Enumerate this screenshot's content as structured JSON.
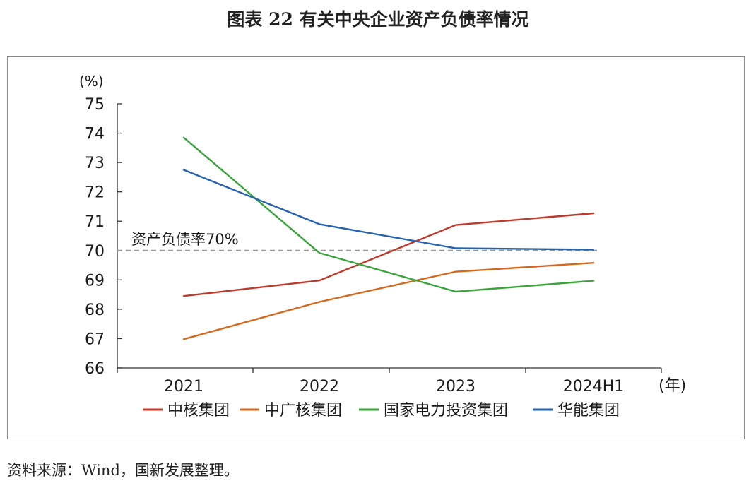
{
  "title": "图表 22  有关中央企业资产负债率情况",
  "source": "资料来源：Wind，国新发展整理。",
  "chart_data": {
    "type": "line",
    "x": [
      "2021",
      "2022",
      "2023",
      "2024H1"
    ],
    "yunit": "(%)",
    "xunit": "(年)",
    "ylim": [
      66,
      75
    ],
    "yticks": [
      66,
      67,
      68,
      69,
      70,
      71,
      72,
      73,
      74,
      75
    ],
    "legend_position": "bottom",
    "grid": false,
    "reference_line": {
      "value": 70,
      "label": "资产负债率70%",
      "color": "#9a9a9a"
    },
    "series": [
      {
        "name": "中核集团",
        "color": "#c0392b",
        "values": [
          68.45,
          68.98,
          70.87,
          71.27
        ]
      },
      {
        "name": "中广核集团",
        "color": "#d2691e",
        "values": [
          66.98,
          68.25,
          69.28,
          69.58
        ]
      },
      {
        "name": "国家电力投资集团",
        "color": "#3aa33a",
        "values": [
          73.85,
          69.92,
          68.6,
          68.97
        ]
      },
      {
        "name": "华能集团",
        "color": "#2563b0",
        "values": [
          72.75,
          70.9,
          70.08,
          70.03
        ]
      }
    ]
  }
}
